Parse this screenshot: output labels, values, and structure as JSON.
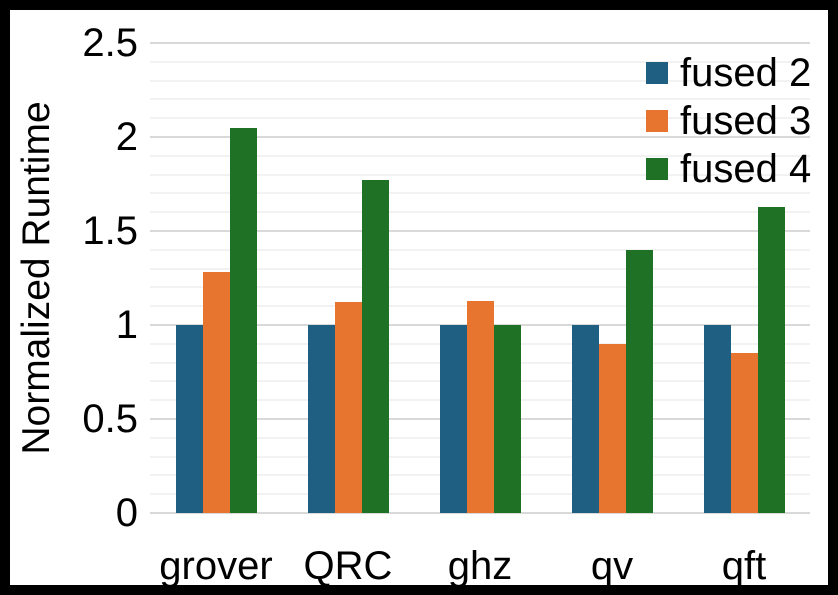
{
  "frame": {
    "border_color": "#000000",
    "chart_background": "#ffffff"
  },
  "chart_data": {
    "type": "bar",
    "title": "",
    "xlabel": "",
    "ylabel": "Normalized Runtime",
    "categories": [
      "grover",
      "QRC",
      "ghz",
      "qv",
      "qft"
    ],
    "series": [
      {
        "name": "fused 2",
        "color": "#1f5f82",
        "values": [
          1.0,
          1.0,
          1.0,
          1.0,
          1.0
        ]
      },
      {
        "name": "fused 3",
        "color": "#e7742f",
        "values": [
          1.28,
          1.12,
          1.13,
          0.9,
          0.85
        ]
      },
      {
        "name": "fused 4",
        "color": "#1e7125",
        "values": [
          2.05,
          1.77,
          1.0,
          1.4,
          1.63
        ]
      }
    ],
    "ylim": [
      0,
      2.5
    ],
    "yticks": [
      0,
      0.5,
      1,
      1.5,
      2,
      2.5
    ],
    "ytick_labels": [
      "0",
      "0.5",
      "1",
      "1.5",
      "2",
      "2.5"
    ],
    "minor_grid_step": 0.1,
    "major_grid_step": 0.5,
    "grid": true,
    "legend_position": "top-right",
    "colors": {
      "major_gridline": "#d9d9d9",
      "minor_gridline": "#f2f2f2",
      "axis_text": "#000000"
    }
  }
}
